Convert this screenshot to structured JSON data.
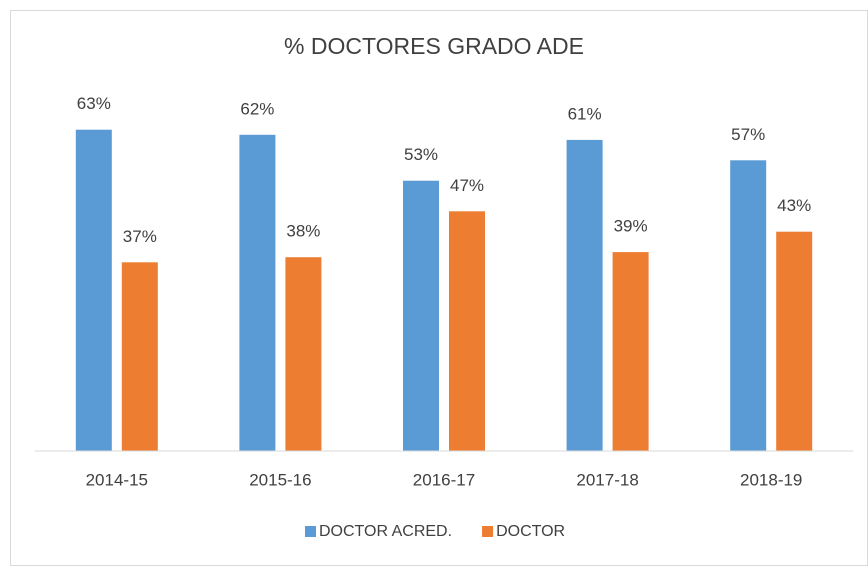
{
  "chart_data": {
    "type": "bar",
    "title": "% DOCTORES GRADO ADE",
    "categories": [
      "2014-15",
      "2015-16",
      "2016-17",
      "2017-18",
      "2018-19"
    ],
    "series": [
      {
        "name": "DOCTOR ACRED.",
        "color": "#5b9bd5",
        "values": [
          63,
          62,
          53,
          61,
          57
        ],
        "value_labels": [
          "63%",
          "62%",
          "53%",
          "61%",
          "57%"
        ]
      },
      {
        "name": "DOCTOR",
        "color": "#ed7d31",
        "values": [
          37,
          38,
          47,
          39,
          43
        ],
        "value_labels": [
          "37%",
          "38%",
          "47%",
          "39%",
          "43%"
        ]
      }
    ],
    "ylim": [
      0,
      70
    ],
    "legend": "bottom"
  }
}
